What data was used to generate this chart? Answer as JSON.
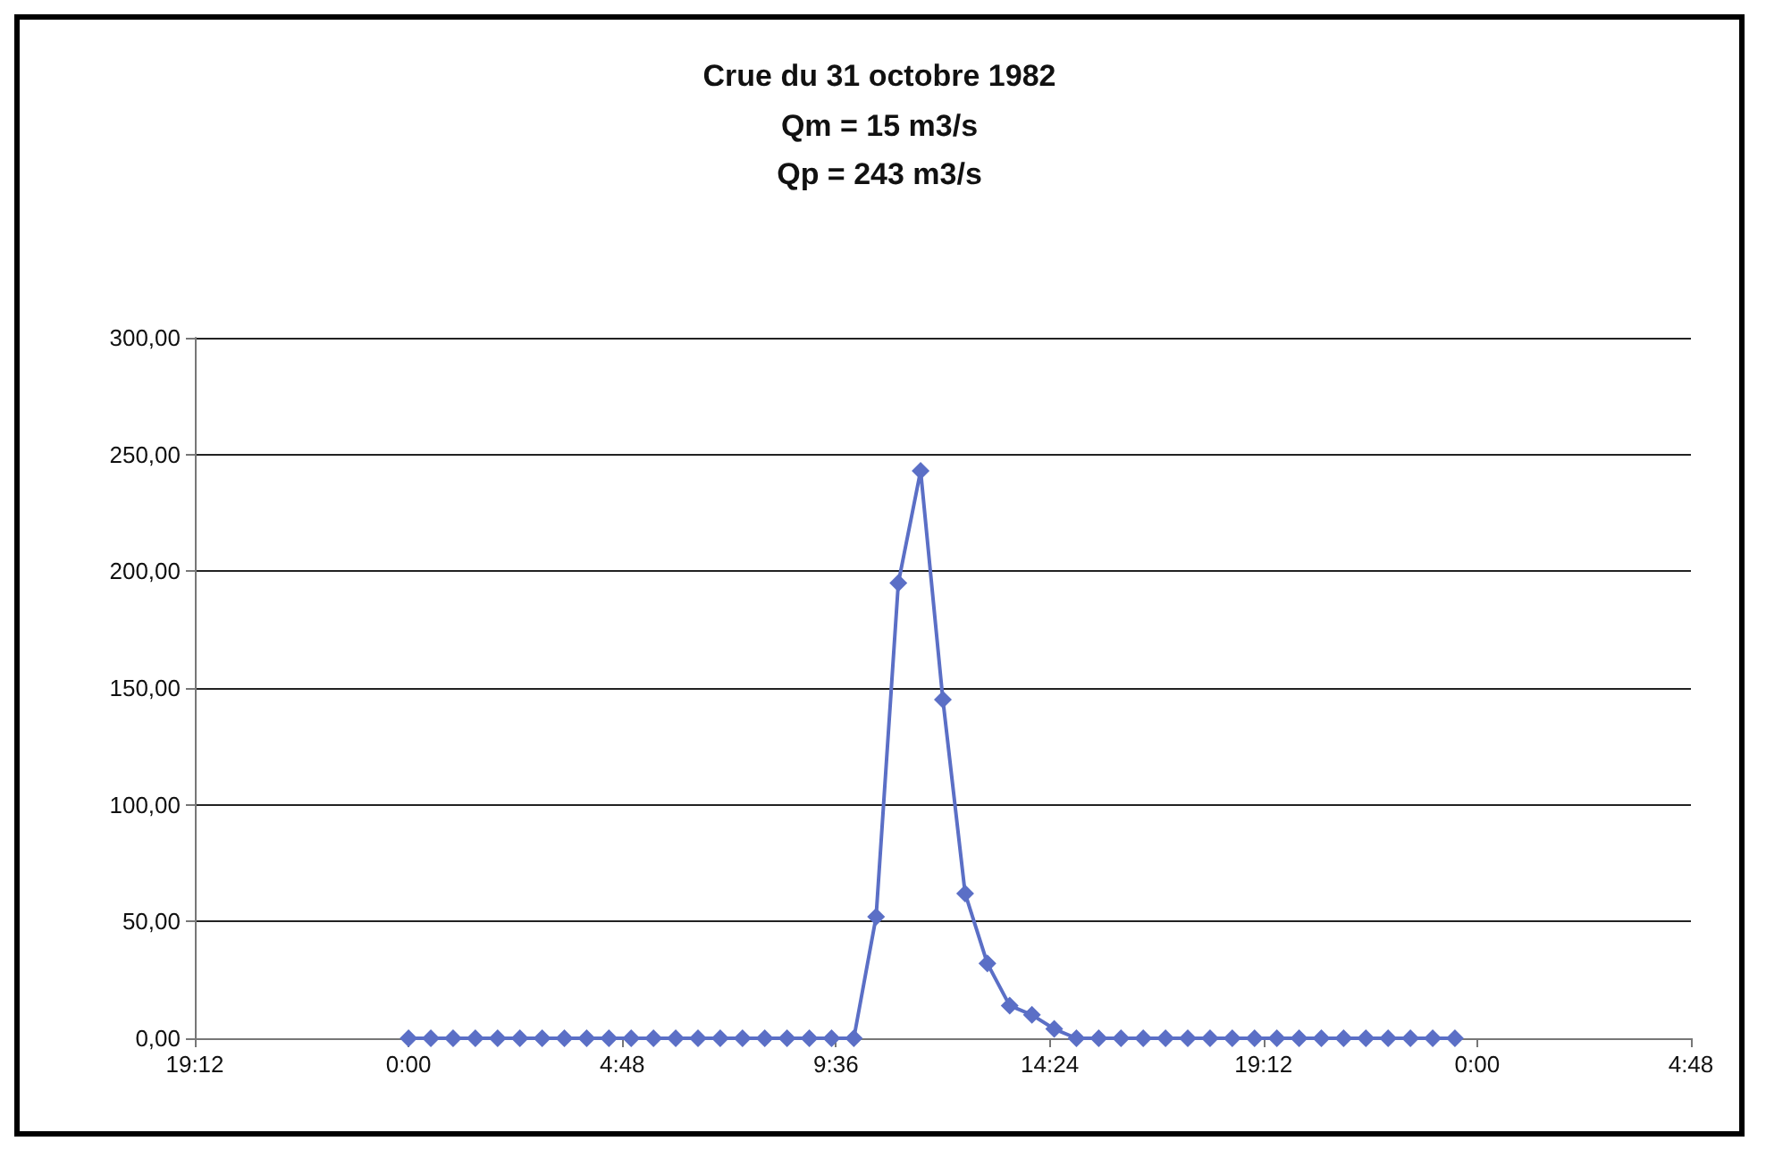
{
  "chart_data": {
    "type": "line",
    "title": "Crue du 31 octobre 1982",
    "subtitle": "Qm = 15 m3/s\nQp = 243 m3/s",
    "x": [
      "1982-10-31T00:00",
      "1982-10-31T00:30",
      "1982-10-31T01:00",
      "1982-10-31T01:30",
      "1982-10-31T02:00",
      "1982-10-31T02:30",
      "1982-10-31T03:00",
      "1982-10-31T03:30",
      "1982-10-31T04:00",
      "1982-10-31T04:30",
      "1982-10-31T05:00",
      "1982-10-31T05:30",
      "1982-10-31T06:00",
      "1982-10-31T06:30",
      "1982-10-31T07:00",
      "1982-10-31T07:30",
      "1982-10-31T08:00",
      "1982-10-31T08:30",
      "1982-10-31T09:00",
      "1982-10-31T09:30",
      "1982-10-31T10:00",
      "1982-10-31T10:30",
      "1982-10-31T11:00",
      "1982-10-31T11:30",
      "1982-10-31T12:00",
      "1982-10-31T12:30",
      "1982-10-31T13:00",
      "1982-10-31T13:30",
      "1982-10-31T14:00",
      "1982-10-31T14:30",
      "1982-10-31T15:00",
      "1982-10-31T15:30",
      "1982-10-31T16:00",
      "1982-10-31T16:30",
      "1982-10-31T17:00",
      "1982-10-31T17:30",
      "1982-10-31T18:00",
      "1982-10-31T18:30",
      "1982-10-31T19:00",
      "1982-10-31T19:30",
      "1982-10-31T20:00",
      "1982-10-31T20:30",
      "1982-10-31T21:00",
      "1982-10-31T21:30",
      "1982-10-31T22:00",
      "1982-10-31T22:30",
      "1982-10-31T23:00",
      "1982-10-31T23:30"
    ],
    "series": [
      {
        "color": "#5b6fc6",
        "values": [
          0,
          0,
          0,
          0,
          0,
          0,
          0,
          0,
          0,
          0,
          0,
          0,
          0,
          0,
          0,
          0,
          0,
          0,
          0,
          0,
          0,
          52,
          195,
          243,
          145,
          62,
          32,
          14,
          10,
          4,
          0,
          0,
          0,
          0,
          0,
          0,
          0,
          0,
          0,
          0,
          0,
          0,
          0,
          0,
          0,
          0,
          0,
          0
        ]
      }
    ],
    "xlim": [
      "1982-10-30T19:12",
      "1982-11-01T04:48"
    ],
    "xticks": [
      {
        "value": "1982-10-30T19:12",
        "label": "19:12"
      },
      {
        "value": "1982-10-31T00:00",
        "label": "0:00"
      },
      {
        "value": "1982-10-31T04:48",
        "label": "4:48"
      },
      {
        "value": "1982-10-31T09:36",
        "label": "9:36"
      },
      {
        "value": "1982-10-31T14:24",
        "label": "14:24"
      },
      {
        "value": "1982-10-31T19:12",
        "label": "19:12"
      },
      {
        "value": "1982-11-01T00:00",
        "label": "0:00"
      },
      {
        "value": "1982-11-01T04:48",
        "label": "4:48"
      }
    ],
    "ylim": [
      0,
      300
    ],
    "yticks": [
      {
        "value": 0,
        "label": "0,00"
      },
      {
        "value": 50,
        "label": "50,00"
      },
      {
        "value": 100,
        "label": "100,00"
      },
      {
        "value": 150,
        "label": "150,00"
      },
      {
        "value": 200,
        "label": "200,00"
      },
      {
        "value": 250,
        "label": "250,00"
      },
      {
        "value": 300,
        "label": "300,00"
      }
    ],
    "grid": "y",
    "marker": "diamond",
    "line_style": "solid"
  }
}
